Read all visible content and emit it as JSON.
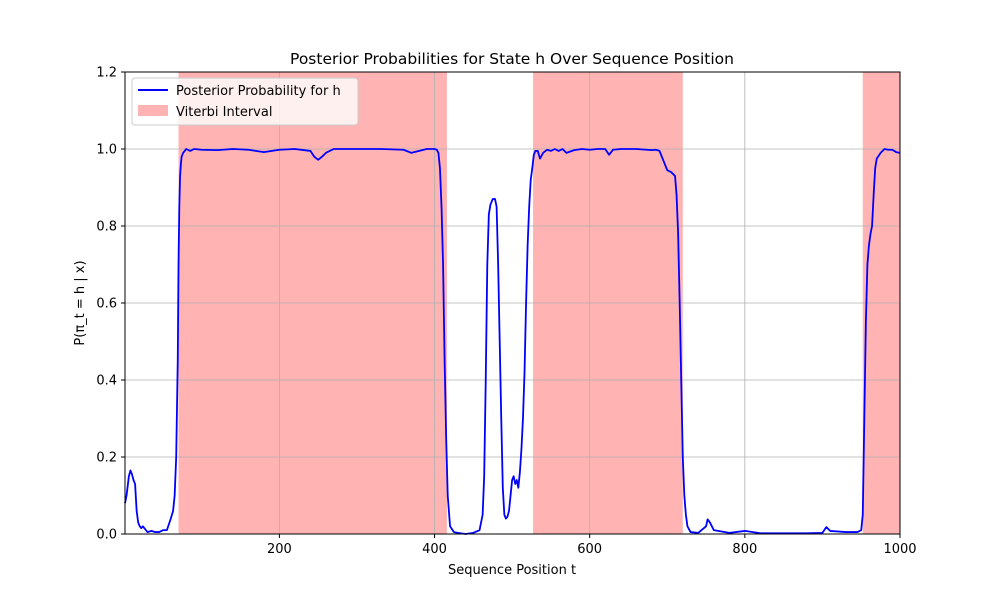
{
  "chart_data": {
    "type": "line",
    "title": "Posterior Probabilities for State h Over Sequence Position",
    "xlabel": "Sequence Position t",
    "ylabel": "P(π_t = h | x)",
    "xlim": [
      1,
      1000
    ],
    "ylim": [
      0,
      1.2
    ],
    "x_ticks": [
      200,
      400,
      600,
      800,
      1000
    ],
    "y_ticks": [
      0.0,
      0.2,
      0.4,
      0.6,
      0.8,
      1.0,
      1.2
    ],
    "x_tick_labels": [
      "200",
      "400",
      "600",
      "800",
      "1000"
    ],
    "y_tick_labels": [
      "0.0",
      "0.2",
      "0.4",
      "0.6",
      "0.8",
      "1.0",
      "1.2"
    ],
    "grid": true,
    "legend_position": "upper-left",
    "series": [
      {
        "name": "Posterior Probability for h",
        "color": "#0000ff",
        "x": [
          1,
          3,
          6,
          8,
          10,
          12,
          14,
          16,
          18,
          20,
          22,
          24,
          26,
          28,
          30,
          35,
          40,
          45,
          50,
          55,
          60,
          63,
          65,
          67,
          69,
          70,
          71,
          72,
          73,
          74,
          76,
          78,
          80,
          85,
          90,
          100,
          120,
          140,
          160,
          180,
          200,
          220,
          240,
          245,
          250,
          255,
          260,
          270,
          300,
          330,
          360,
          370,
          390,
          400,
          403,
          405,
          407,
          409,
          411,
          413,
          415,
          417,
          420,
          425,
          430,
          440,
          450,
          458,
          462,
          464,
          466,
          468,
          470,
          472,
          475,
          478,
          480,
          482,
          484,
          486,
          488,
          490,
          492,
          494,
          496,
          498,
          500,
          502,
          504,
          506,
          508,
          510,
          512,
          514,
          516,
          518,
          520,
          522,
          524,
          526,
          528,
          530,
          533,
          536,
          540,
          545,
          550,
          555,
          560,
          565,
          570,
          580,
          590,
          600,
          610,
          620,
          625,
          630,
          640,
          660,
          680,
          685,
          690,
          695,
          700,
          705,
          710,
          712,
          714,
          716,
          718,
          720,
          722,
          724,
          726,
          730,
          740,
          750,
          752,
          755,
          760,
          780,
          800,
          820,
          850,
          880,
          900,
          905,
          910,
          930,
          945,
          950,
          952,
          954,
          956,
          958,
          960,
          962,
          964,
          966,
          968,
          970,
          975,
          980,
          985,
          990,
          995,
          1000
        ],
        "values": [
          0.08,
          0.1,
          0.15,
          0.165,
          0.155,
          0.14,
          0.13,
          0.06,
          0.03,
          0.02,
          0.015,
          0.02,
          0.015,
          0.01,
          0.005,
          0.008,
          0.005,
          0.005,
          0.01,
          0.01,
          0.04,
          0.06,
          0.1,
          0.2,
          0.45,
          0.7,
          0.85,
          0.93,
          0.96,
          0.98,
          0.99,
          0.995,
          1.0,
          0.995,
          1.0,
          0.998,
          0.997,
          1.0,
          0.998,
          0.992,
          0.998,
          1.0,
          0.995,
          0.98,
          0.972,
          0.98,
          0.99,
          1.0,
          1.0,
          1.0,
          0.998,
          0.99,
          1.0,
          1.0,
          0.998,
          0.99,
          0.95,
          0.85,
          0.7,
          0.45,
          0.25,
          0.1,
          0.02,
          0.005,
          0.003,
          0.0,
          0.003,
          0.01,
          0.05,
          0.15,
          0.4,
          0.7,
          0.83,
          0.855,
          0.87,
          0.87,
          0.85,
          0.7,
          0.5,
          0.3,
          0.12,
          0.05,
          0.04,
          0.045,
          0.06,
          0.1,
          0.14,
          0.15,
          0.13,
          0.14,
          0.12,
          0.16,
          0.22,
          0.3,
          0.42,
          0.6,
          0.75,
          0.85,
          0.92,
          0.95,
          0.985,
          0.995,
          0.995,
          0.975,
          0.99,
          0.998,
          0.995,
          1.0,
          0.995,
          1.0,
          0.99,
          0.997,
          1.0,
          0.998,
          1.0,
          1.0,
          0.985,
          0.998,
          1.0,
          1.0,
          0.997,
          0.998,
          0.995,
          0.97,
          0.945,
          0.94,
          0.93,
          0.88,
          0.78,
          0.6,
          0.4,
          0.2,
          0.1,
          0.05,
          0.02,
          0.005,
          0.003,
          0.02,
          0.038,
          0.03,
          0.01,
          0.003,
          0.008,
          0.002,
          0.002,
          0.002,
          0.003,
          0.018,
          0.008,
          0.005,
          0.005,
          0.01,
          0.05,
          0.3,
          0.55,
          0.7,
          0.75,
          0.78,
          0.8,
          0.88,
          0.95,
          0.975,
          0.99,
          1.0,
          0.998,
          0.998,
          0.992,
          0.99
        ]
      }
    ],
    "intervals": {
      "name": "Viterbi Interval",
      "color": "#ff9999",
      "ranges": [
        [
          70,
          416
        ],
        [
          527,
          720
        ],
        [
          952,
          1000
        ]
      ]
    }
  }
}
